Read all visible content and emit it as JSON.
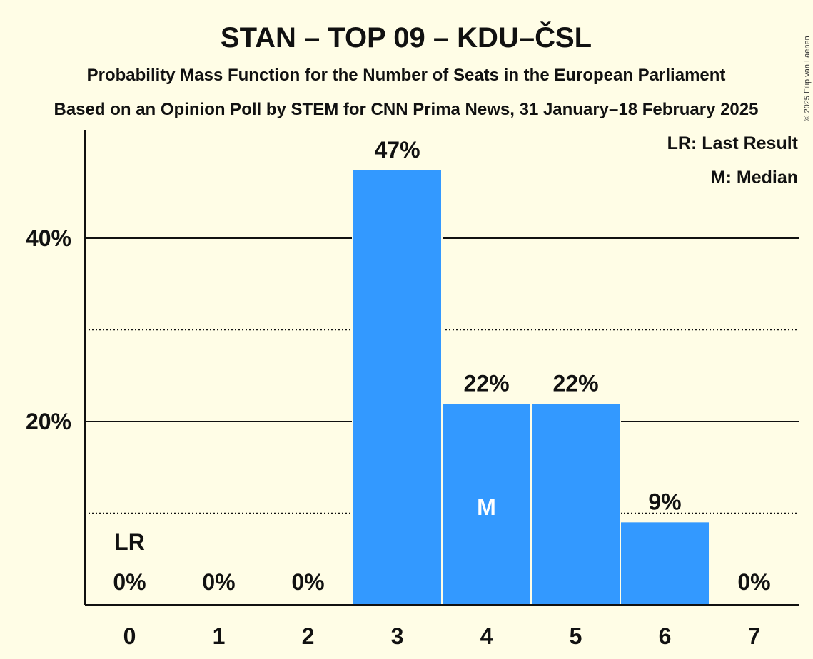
{
  "chart_data": {
    "type": "bar",
    "title": "STAN – TOP 09 – KDU–ČSL",
    "subtitle": "Probability Mass Function for the Number of Seats in the European Parliament",
    "subtitle2": "Based on an Opinion Poll by STEM for CNN Prima News, 31 January–18 February 2025",
    "copyright": "© 2025 Filip van Laenen",
    "categories": [
      "0",
      "1",
      "2",
      "3",
      "4",
      "5",
      "6",
      "7"
    ],
    "values": [
      0,
      0,
      0,
      47.4,
      21.9,
      21.9,
      9.0,
      0
    ],
    "value_labels": [
      "0%",
      "0%",
      "0%",
      "47%",
      "22%",
      "22%",
      "9%",
      "0%"
    ],
    "ylim": [
      0,
      52
    ],
    "yticks": [
      {
        "value": 20,
        "label": "20%"
      },
      {
        "value": 40,
        "label": "40%"
      }
    ],
    "minor_gridlines": [
      10,
      30
    ],
    "last_result_index": 0,
    "last_result_label": "LR",
    "median_index": 4,
    "median_label": "M",
    "legend": {
      "position": "top-right",
      "items": [
        "LR: Last Result",
        "M: Median"
      ]
    },
    "bar_color": "#3399FF"
  }
}
